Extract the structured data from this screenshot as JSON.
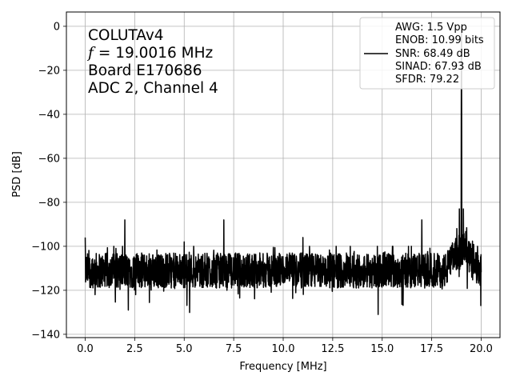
{
  "chart_data": {
    "type": "line",
    "title": "",
    "xlabel": "Frequency [MHz]",
    "ylabel": "PSD [dB]",
    "xlim": [
      -0.95,
      20.95
    ],
    "ylim": [
      -141.5,
      6.5
    ],
    "xticks": [
      0.0,
      2.5,
      5.0,
      7.5,
      10.0,
      12.5,
      15.0,
      17.5,
      20.0
    ],
    "xtick_labels": [
      "0.0",
      "2.5",
      "5.0",
      "7.5",
      "10.0",
      "12.5",
      "15.0",
      "17.5",
      "20.0"
    ],
    "yticks": [
      0,
      -20,
      -40,
      -60,
      -80,
      -100,
      -120,
      -140
    ],
    "ytick_labels": [
      "0",
      "−20",
      "−40",
      "−60",
      "−80",
      "−100",
      "−120",
      "−140"
    ],
    "grid": true,
    "annotation": {
      "lines": [
        "COLUTAv4",
        "= 19.0016 MHz",
        "Board E170686",
        "ADC 2, Channel 4"
      ],
      "f_symbol": "f"
    },
    "legend": {
      "placement": "top-right",
      "lines": [
        "AWG: 1.5 Vpp",
        "ENOB: 10.99 bits",
        "SNR: 68.49 dB",
        "SINAD: 67.93 dB",
        "SFDR: 79.22"
      ]
    },
    "series": [
      {
        "color": "#000000",
        "noise_floor_db": -111,
        "noise_range_db": [
          -131,
          -100
        ],
        "fundamental": {
          "x": 19.0016,
          "y": 0
        },
        "spurs": [
          {
            "x": 0.0,
            "y": -96
          },
          {
            "x": 2.0,
            "y": -88
          },
          {
            "x": 5.0,
            "y": -98
          },
          {
            "x": 7.0,
            "y": -88
          },
          {
            "x": 11.0,
            "y": -96
          },
          {
            "x": 17.0,
            "y": -88
          },
          {
            "x": 18.9,
            "y": -83
          },
          {
            "x": 19.1,
            "y": -83
          }
        ]
      }
    ]
  }
}
